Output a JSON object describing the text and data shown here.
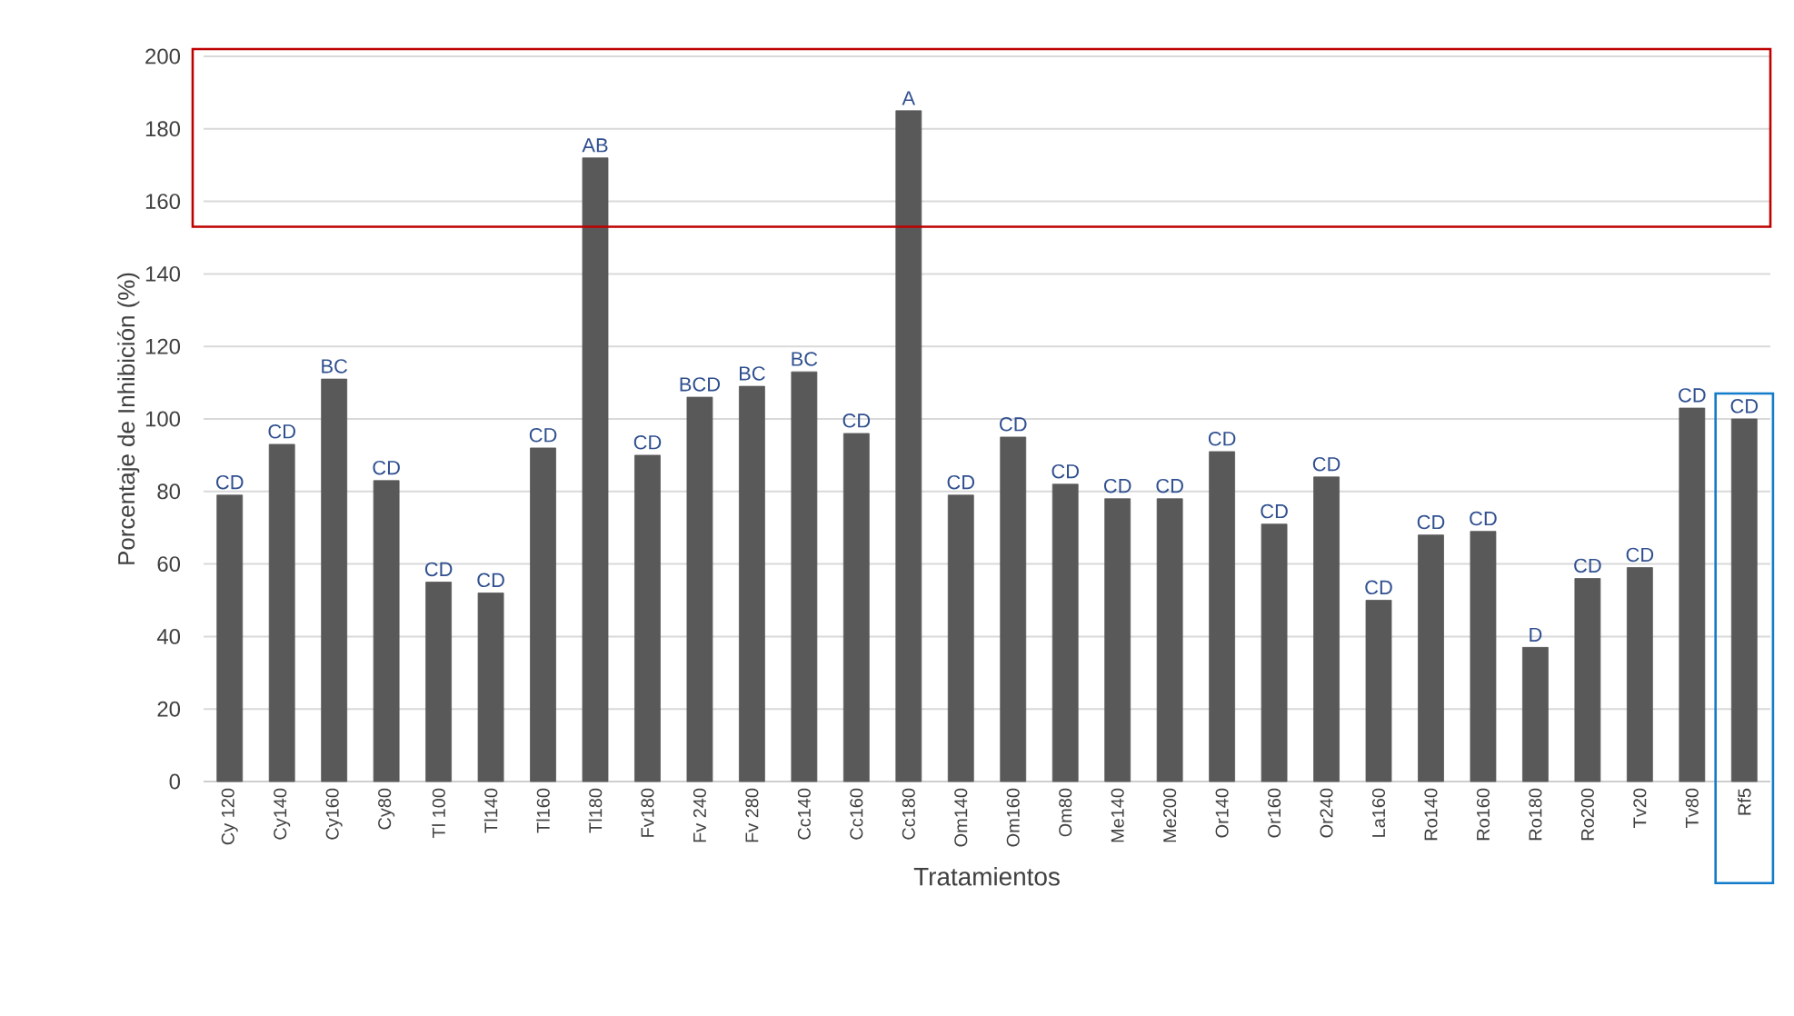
{
  "chart_data": {
    "type": "bar",
    "xlabel": "Tratamientos",
    "ylabel": "Porcentaje de Inhibición (%)",
    "categories": [
      "Cy 120",
      "Cy140",
      "Cy160",
      "Cy80",
      "Tl 100",
      "Tl140",
      "Tl160",
      "Tl180",
      "Fv180",
      "Fv 240",
      "Fv 280",
      "Cc140",
      "Cc160",
      "Cc180",
      "Om140",
      "Om160",
      "Om80",
      "Me140",
      "Me200",
      "Or140",
      "Or160",
      "Or240",
      "La160",
      "Ro140",
      "Ro160",
      "Ro180",
      "Ro200",
      "Tv20",
      "Tv80",
      "Rf5"
    ],
    "values": [
      79,
      93,
      111,
      83,
      55,
      52,
      92,
      172,
      90,
      106,
      109,
      113,
      96,
      185,
      79,
      95,
      82,
      78,
      78,
      91,
      71,
      84,
      50,
      68,
      69,
      37,
      56,
      59,
      103,
      100
    ],
    "value_labels": [
      "CD",
      "CD",
      "BC",
      "CD",
      "CD",
      "CD",
      "CD",
      "AB",
      "CD",
      "BCD",
      "BC",
      "BC",
      "CD",
      "A",
      "CD",
      "CD",
      "CD",
      "CD",
      "CD",
      "CD",
      "CD",
      "CD",
      "CD",
      "CD",
      "CD",
      "D",
      "CD",
      "CD",
      "CD",
      "CD"
    ],
    "color": "#595959",
    "ylim": [
      0,
      200
    ],
    "yticks": [
      0,
      20,
      40,
      60,
      80,
      100,
      120,
      140,
      160,
      180,
      200
    ],
    "grid": "y"
  }
}
